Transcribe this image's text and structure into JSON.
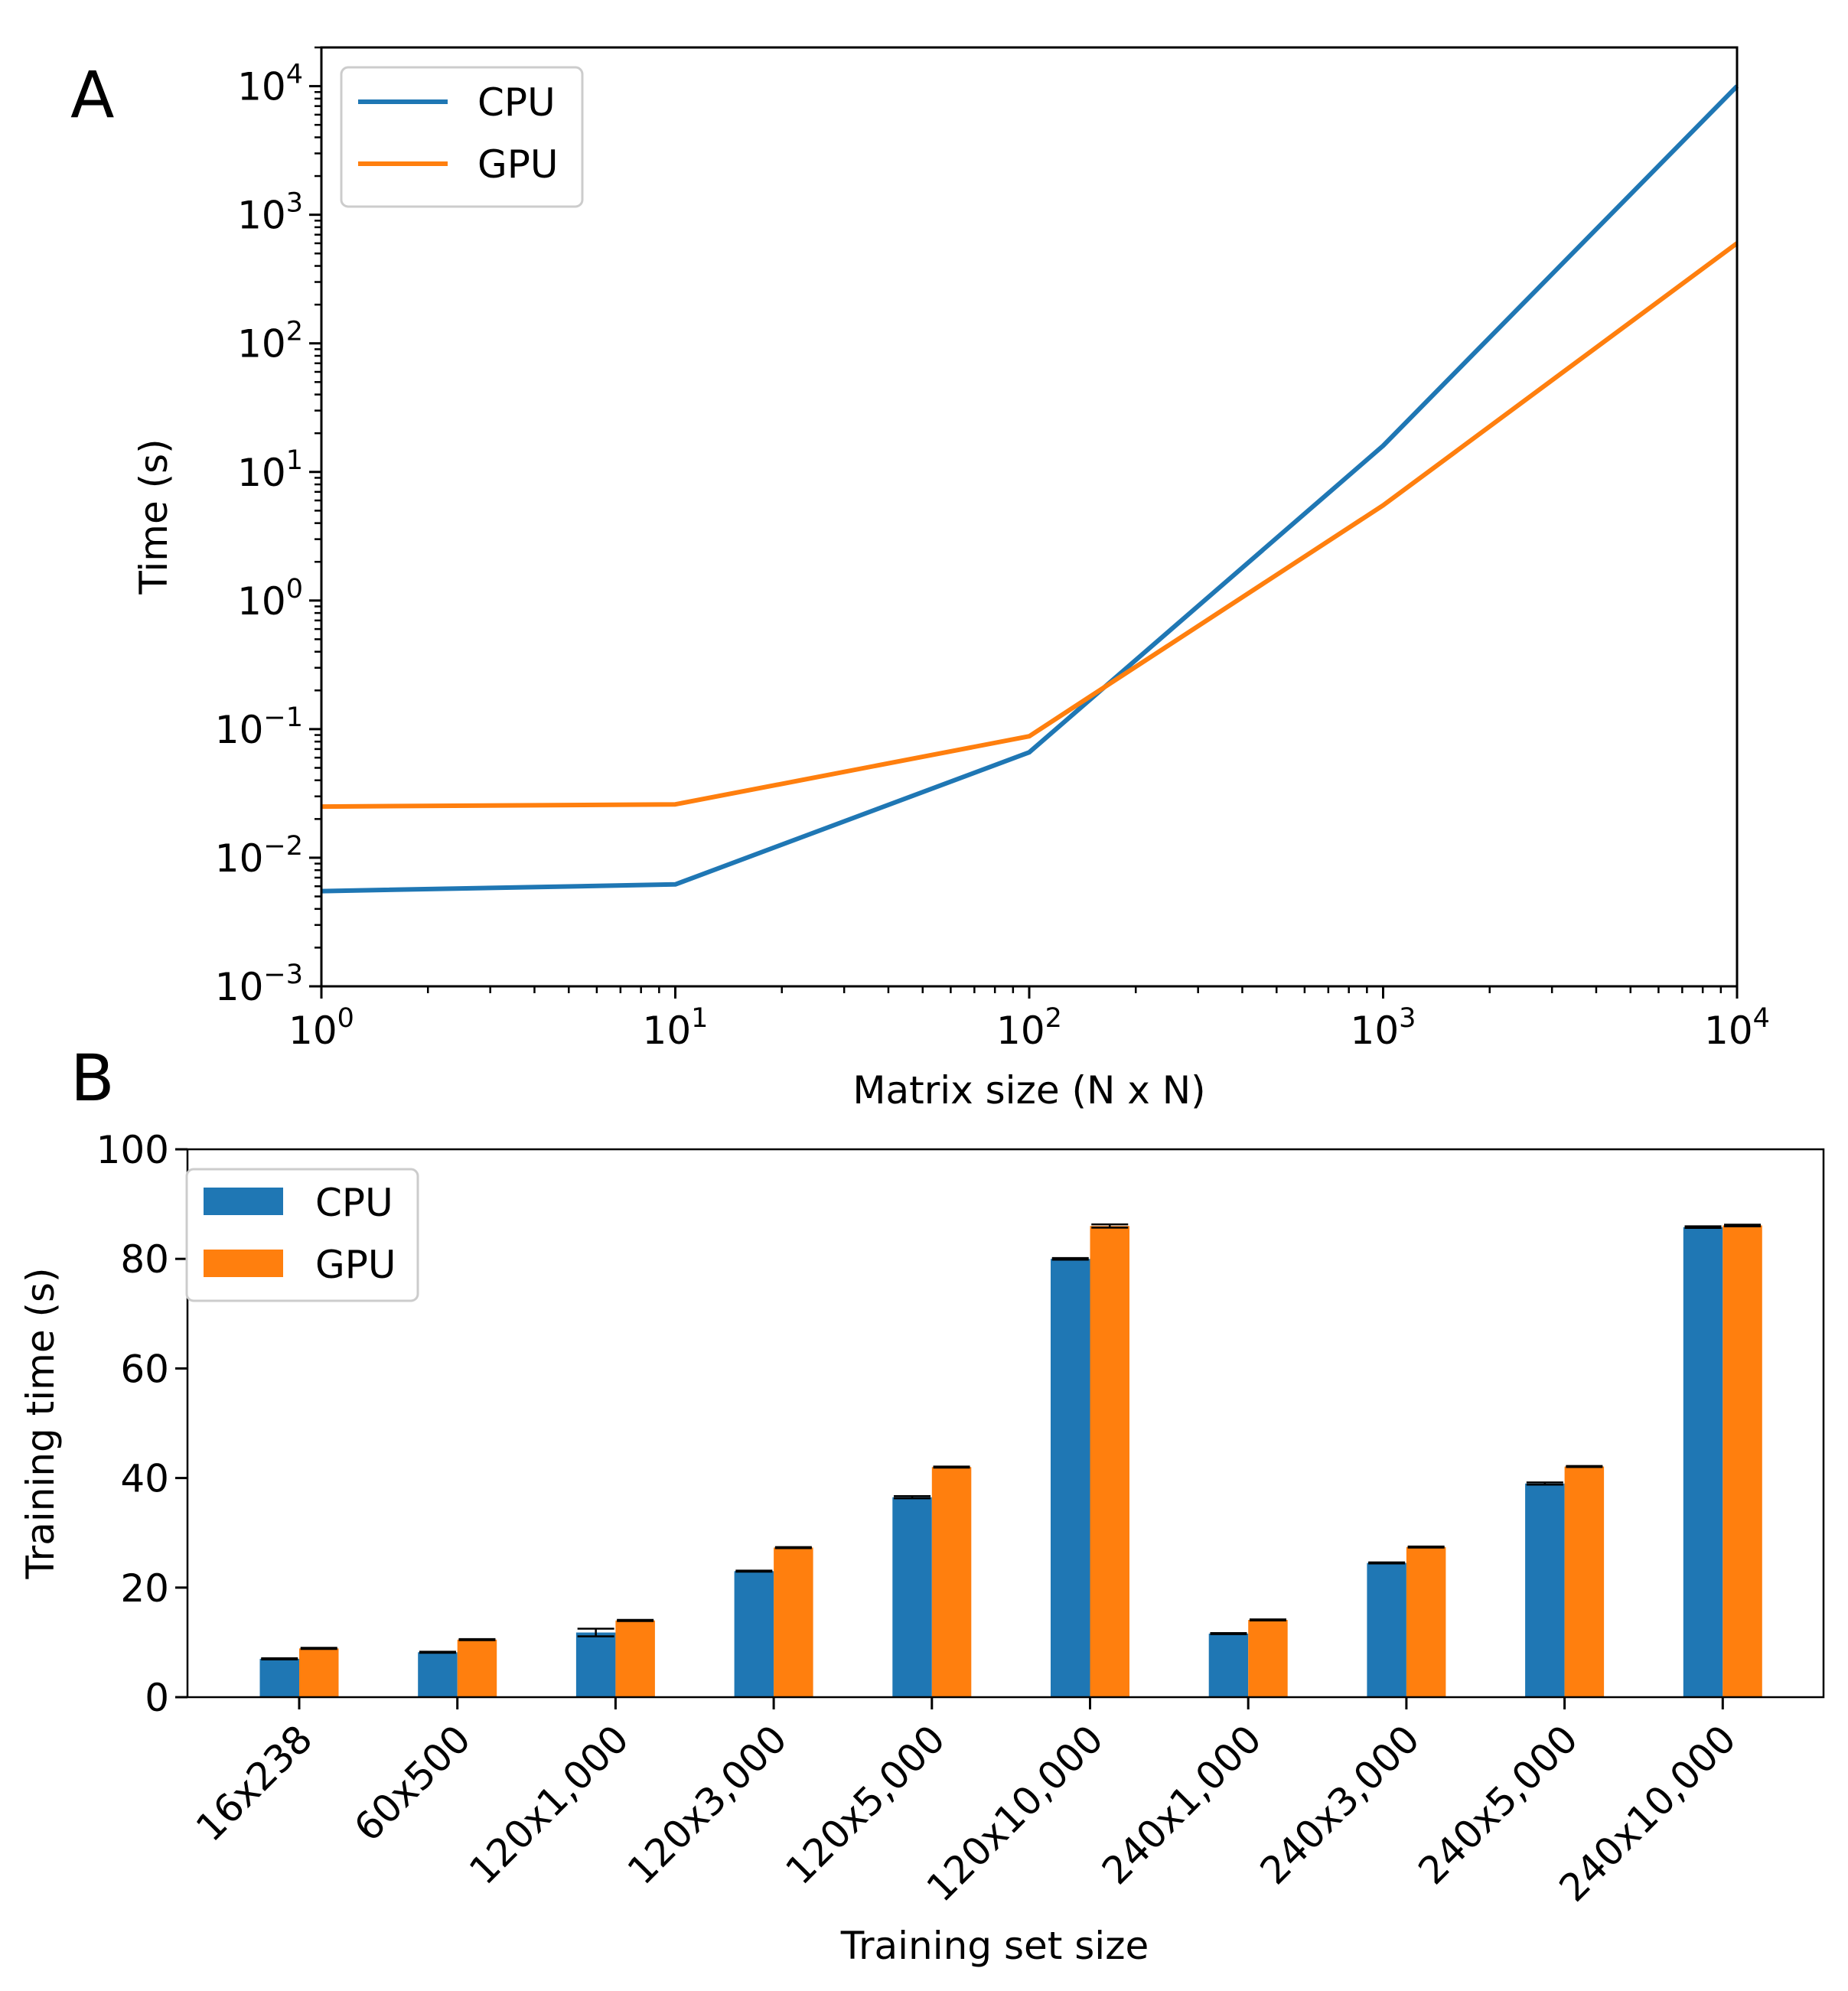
{
  "panels": {
    "a_label": "A",
    "b_label": "B"
  },
  "chart_data": [
    {
      "type": "line",
      "panel": "A",
      "xlabel": "Matrix size (N x N)",
      "ylabel": "Time (s)",
      "xscale": "log",
      "yscale": "log",
      "xlim": [
        1,
        10000
      ],
      "ylim": [
        0.001,
        20000
      ],
      "x_ticks": [
        {
          "base": "10",
          "exp": "0",
          "value": 1
        },
        {
          "base": "10",
          "exp": "1",
          "value": 10
        },
        {
          "base": "10",
          "exp": "2",
          "value": 100
        },
        {
          "base": "10",
          "exp": "3",
          "value": 1000
        },
        {
          "base": "10",
          "exp": "4",
          "value": 10000
        }
      ],
      "y_ticks": [
        {
          "base": "10",
          "exp": "−3",
          "value": 0.001
        },
        {
          "base": "10",
          "exp": "−2",
          "value": 0.01
        },
        {
          "base": "10",
          "exp": "−1",
          "value": 0.1
        },
        {
          "base": "10",
          "exp": "0",
          "value": 1
        },
        {
          "base": "10",
          "exp": "1",
          "value": 10
        },
        {
          "base": "10",
          "exp": "2",
          "value": 100
        },
        {
          "base": "10",
          "exp": "3",
          "value": 1000
        },
        {
          "base": "10",
          "exp": "4",
          "value": 10000
        }
      ],
      "x": [
        1,
        10,
        100,
        1000,
        10000
      ],
      "series": [
        {
          "name": "CPU",
          "color": "#1f77b4",
          "values": [
            0.0055,
            0.0062,
            0.066,
            16,
            10000
          ]
        },
        {
          "name": "GPU",
          "color": "#ff7f0e",
          "values": [
            0.025,
            0.026,
            0.088,
            5.5,
            600
          ]
        }
      ],
      "legend": "top-left",
      "grid": false
    },
    {
      "type": "bar",
      "panel": "B",
      "xlabel": "Training set size",
      "ylabel": "Training time (s)",
      "ylim": [
        0,
        100
      ],
      "y_ticks": [
        "0",
        "20",
        "40",
        "60",
        "80",
        "100"
      ],
      "categories": [
        "16x238",
        "60x500",
        "120x1,000",
        "120x3,000",
        "120x5,000",
        "120x10,000",
        "240x1,000",
        "240x3,000",
        "240x5,000",
        "240x10,000"
      ],
      "series": [
        {
          "name": "CPU",
          "color": "#1f77b4",
          "values": [
            7.0,
            8.2,
            11.8,
            23.0,
            36.5,
            80.0,
            11.6,
            24.5,
            39.0,
            85.8
          ],
          "errors": [
            0.1,
            0.1,
            0.7,
            0.1,
            0.2,
            0.15,
            0.1,
            0.1,
            0.2,
            0.15
          ]
        },
        {
          "name": "GPU",
          "color": "#ff7f0e",
          "values": [
            8.9,
            10.5,
            14.0,
            27.3,
            42.0,
            86.0,
            14.1,
            27.4,
            42.1,
            86.1
          ],
          "errors": [
            0.1,
            0.1,
            0.1,
            0.1,
            0.1,
            0.3,
            0.1,
            0.1,
            0.1,
            0.15
          ]
        }
      ],
      "legend": "top-left",
      "grid": false
    }
  ]
}
